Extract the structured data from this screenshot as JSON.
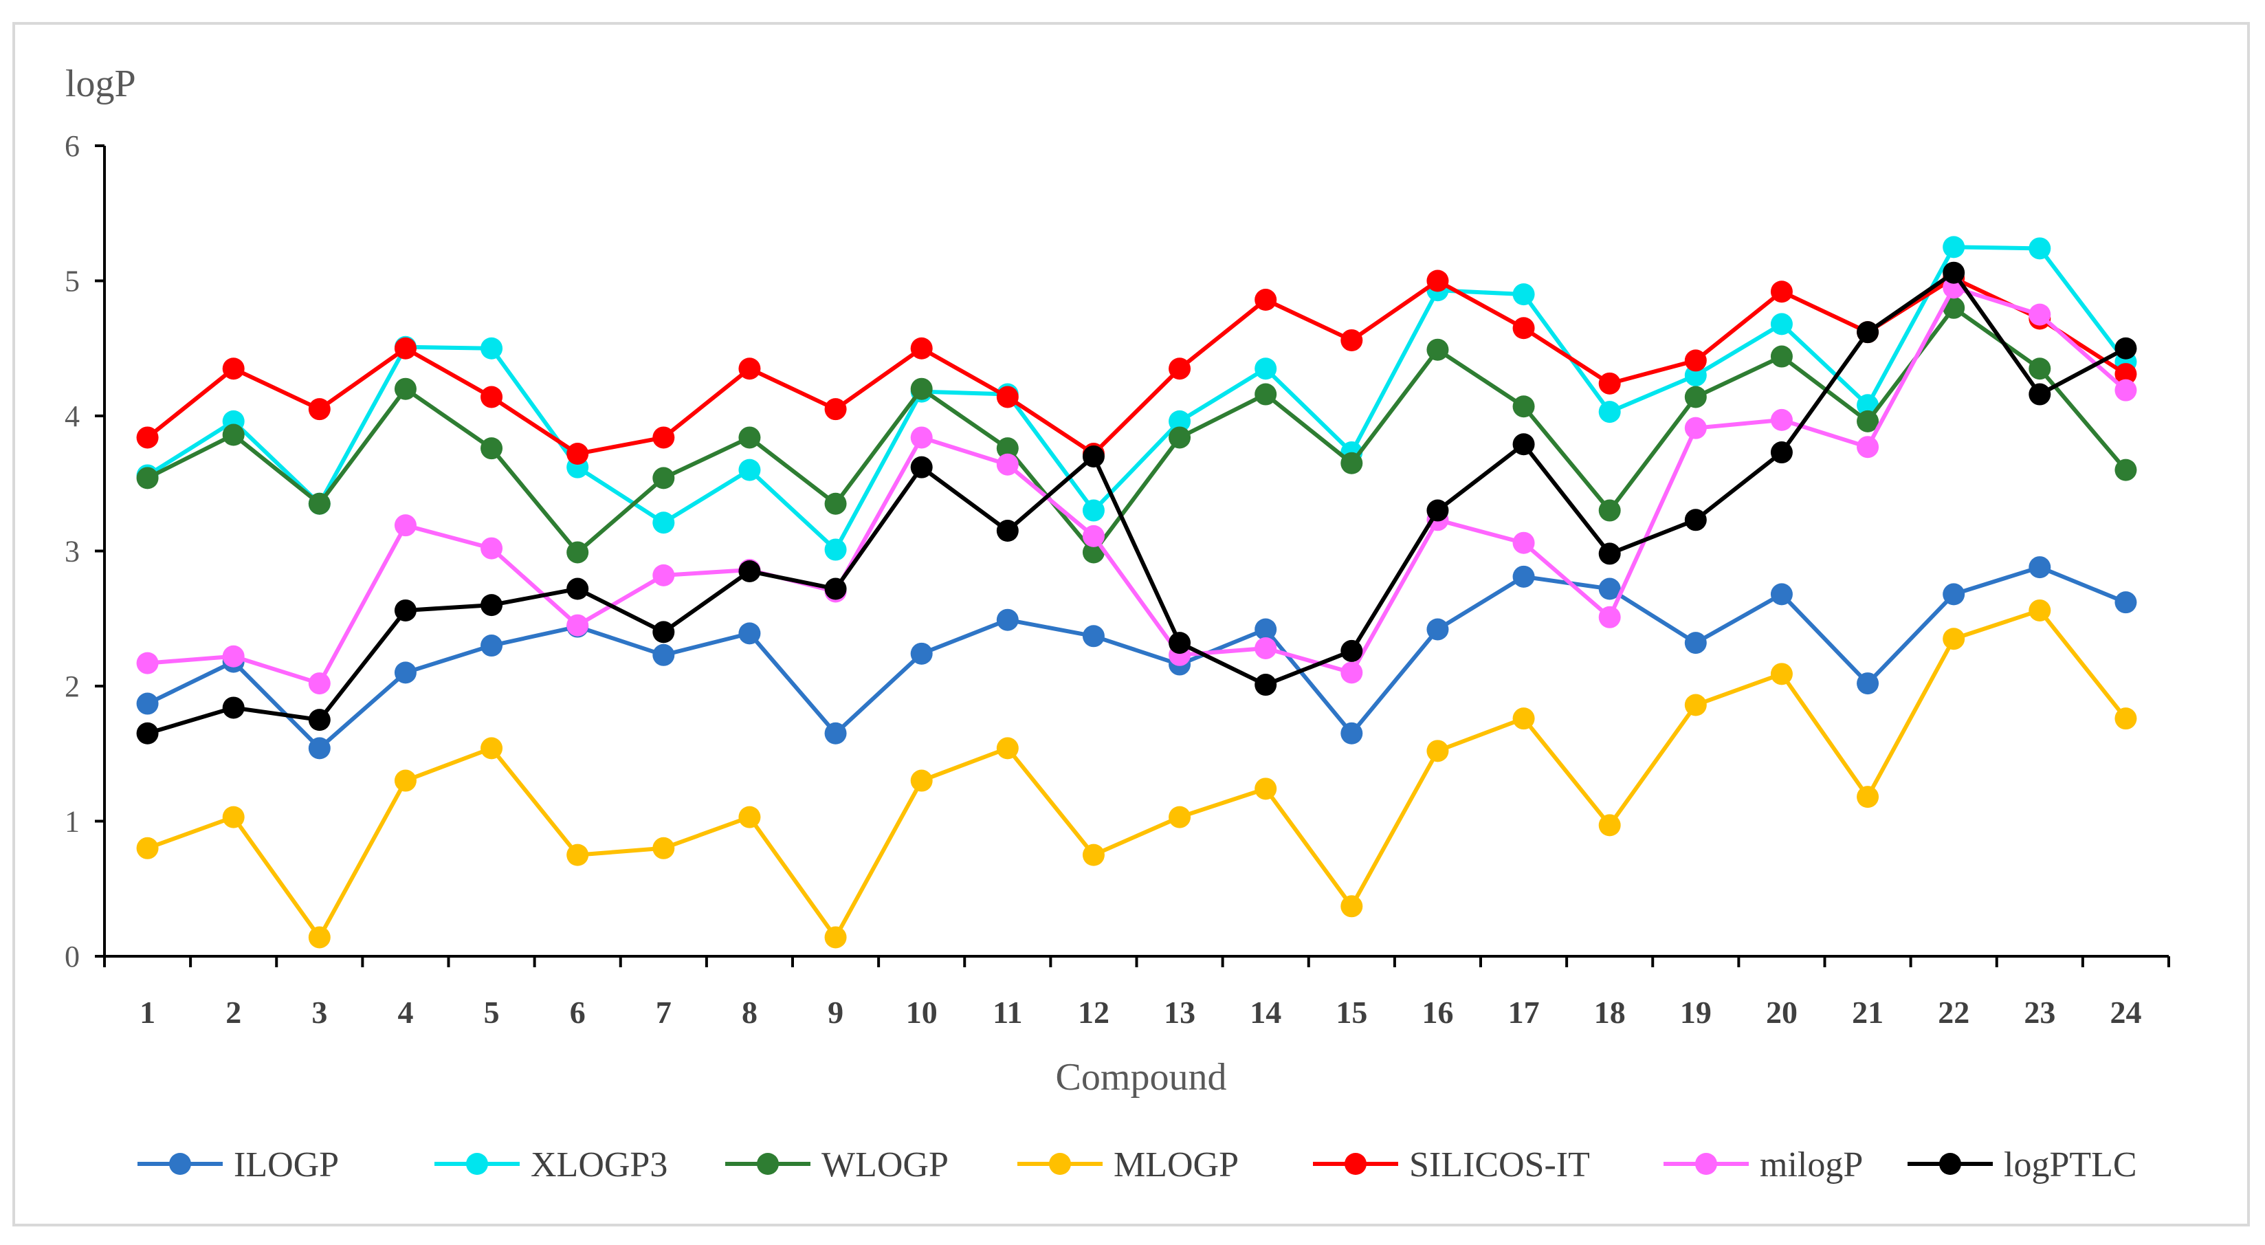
{
  "chart_data": {
    "type": "line",
    "title": "",
    "ylabel": "logP",
    "xlabel": "Compound",
    "ylim": [
      0,
      6
    ],
    "yticks": [
      "0",
      "1",
      "2",
      "3",
      "4",
      "5",
      "6"
    ],
    "categories": [
      "1",
      "2",
      "3",
      "4",
      "5",
      "6",
      "7",
      "8",
      "9",
      "10",
      "11",
      "12",
      "13",
      "14",
      "15",
      "16",
      "17",
      "18",
      "19",
      "20",
      "21",
      "22",
      "23",
      "24"
    ],
    "legend_position": "bottom",
    "series": [
      {
        "name": "ILOGP",
        "color": "#2e75c6",
        "values": [
          1.87,
          2.18,
          1.54,
          2.1,
          2.3,
          2.44,
          2.23,
          2.39,
          1.65,
          2.24,
          2.49,
          2.37,
          2.16,
          2.42,
          1.65,
          2.42,
          2.81,
          2.72,
          2.32,
          2.68,
          2.02,
          2.68,
          2.88,
          2.62
        ]
      },
      {
        "name": "XLOGP3",
        "color": "#00e5ee",
        "values": [
          3.56,
          3.96,
          3.35,
          4.51,
          4.5,
          3.62,
          3.21,
          3.6,
          3.01,
          4.18,
          4.16,
          3.3,
          3.96,
          4.35,
          3.73,
          4.93,
          4.9,
          4.03,
          4.3,
          4.68,
          4.08,
          5.25,
          5.24,
          4.4
        ]
      },
      {
        "name": "WLOGP",
        "color": "#2e7d32",
        "values": [
          3.54,
          3.86,
          3.35,
          4.2,
          3.76,
          2.99,
          3.54,
          3.84,
          3.35,
          4.2,
          3.76,
          2.99,
          3.84,
          4.16,
          3.65,
          4.49,
          4.07,
          3.3,
          4.14,
          4.44,
          3.96,
          4.8,
          4.35,
          3.6
        ]
      },
      {
        "name": "MLOGP",
        "color": "#ffc000",
        "values": [
          0.8,
          1.03,
          0.14,
          1.3,
          1.54,
          0.75,
          0.8,
          1.03,
          0.14,
          1.3,
          1.54,
          0.75,
          1.03,
          1.24,
          0.37,
          1.52,
          1.76,
          0.97,
          1.86,
          2.09,
          1.18,
          2.35,
          2.56,
          1.76
        ]
      },
      {
        "name": "SILICOS-IT",
        "color": "#ff0000",
        "values": [
          3.84,
          4.35,
          4.05,
          4.5,
          4.14,
          3.72,
          3.84,
          4.35,
          4.05,
          4.5,
          4.14,
          3.72,
          4.35,
          4.86,
          4.56,
          5.0,
          4.65,
          4.24,
          4.41,
          4.92,
          4.62,
          5.02,
          4.72,
          4.31
        ]
      },
      {
        "name": "milogP",
        "color": "#ff66ff",
        "values": [
          2.17,
          2.22,
          2.02,
          3.19,
          3.02,
          2.45,
          2.82,
          2.86,
          2.7,
          3.84,
          3.64,
          3.11,
          2.23,
          2.28,
          2.1,
          3.23,
          3.06,
          2.51,
          3.91,
          3.97,
          3.77,
          4.95,
          4.75,
          4.19
        ]
      },
      {
        "name": "logPTLC",
        "color": "#000000",
        "values": [
          1.65,
          1.84,
          1.75,
          2.56,
          2.6,
          2.72,
          2.4,
          2.85,
          2.72,
          3.62,
          3.15,
          3.7,
          2.32,
          2.01,
          2.26,
          3.3,
          3.79,
          2.98,
          3.23,
          3.73,
          4.62,
          5.06,
          4.16,
          4.5
        ]
      }
    ]
  }
}
